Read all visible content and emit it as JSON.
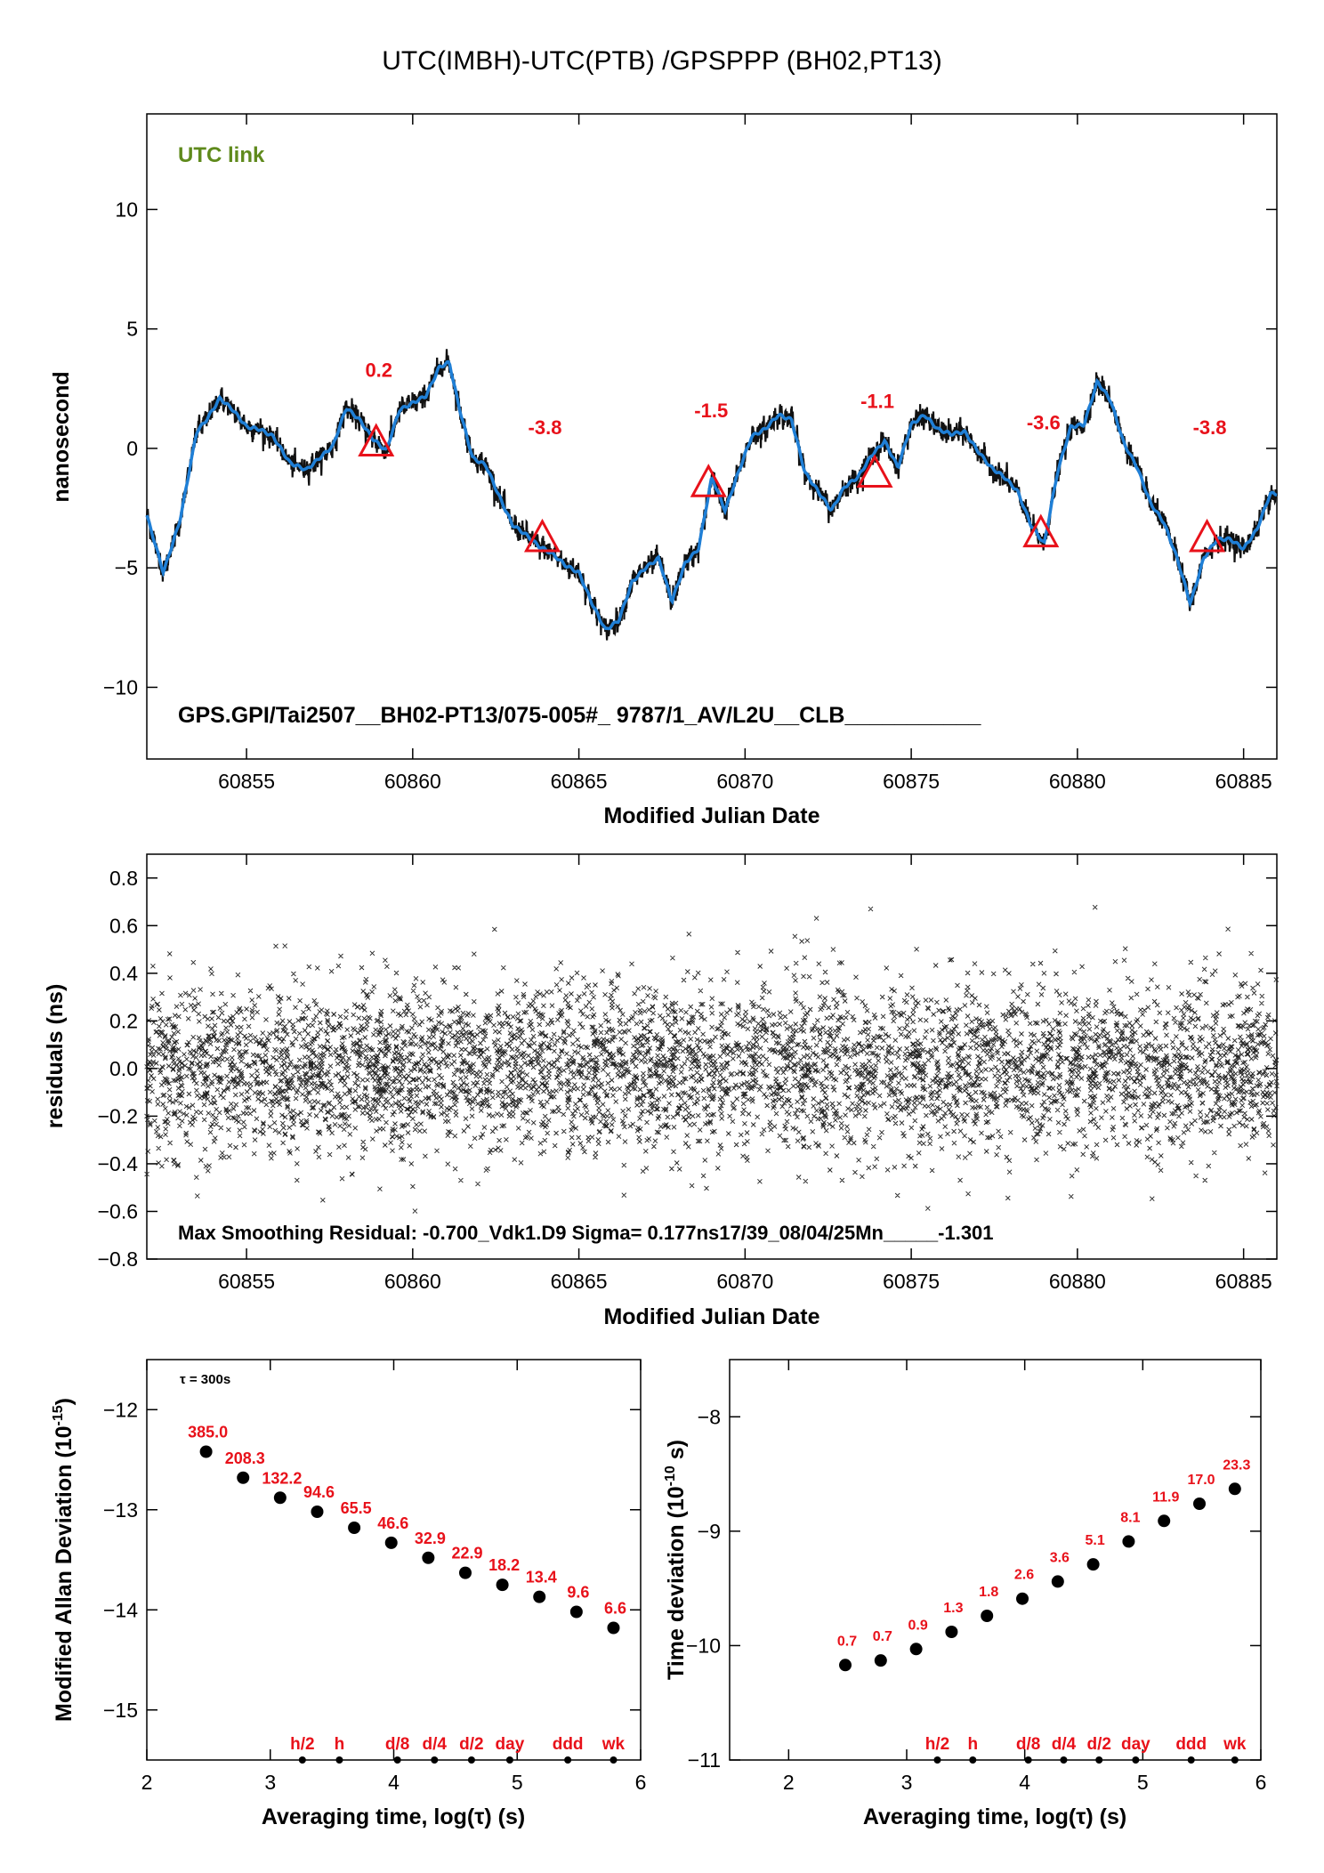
{
  "figure": {
    "title": "UTC(IMBH)-UTC(PTB)  /GPSPPP  (BH02,PT13)"
  },
  "chart_data": [
    {
      "type": "line",
      "panel": "top",
      "xlabel": "Modified Julian Date",
      "ylabel": "nanosecond",
      "xlim": [
        60852,
        60886
      ],
      "ylim": [
        -13,
        14
      ],
      "xticks": [
        60855,
        60860,
        60865,
        60870,
        60875,
        60880,
        60885
      ],
      "yticks": [
        -10,
        -5,
        0,
        5,
        10
      ],
      "link_label": "UTC link",
      "footer_label": "GPS.GPI/Tai2507__BH02-PT13/075-005#_  9787/1_AV/L2U__CLB___________",
      "series": [
        {
          "style": "smoothed-blue-with-black-raw",
          "x": [
            60852.0,
            60852.5,
            60853.0,
            60853.5,
            60853.8,
            60854.2,
            60854.6,
            60855.0,
            60855.4,
            60855.8,
            60856.3,
            60856.8,
            60857.2,
            60857.6,
            60858.0,
            60858.4,
            60858.8,
            60859.2,
            60859.6,
            60860.0,
            60860.4,
            60860.8,
            60861.1,
            60861.4,
            60861.8,
            60862.2,
            60862.6,
            60863.0,
            60863.4,
            60863.8,
            60864.2,
            60864.6,
            60865.0,
            60865.4,
            60865.8,
            60866.2,
            60866.6,
            60867.0,
            60867.4,
            60867.8,
            60868.2,
            60868.6,
            60869.0,
            60869.4,
            60869.8,
            60870.2,
            60870.6,
            60871.0,
            60871.4,
            60871.8,
            60872.2,
            60872.6,
            60873.0,
            60873.4,
            60873.8,
            60874.2,
            60874.6,
            60875.0,
            60875.4,
            60875.8,
            60876.2,
            60876.6,
            60877.0,
            60877.4,
            60877.8,
            60878.2,
            60878.6,
            60879.0,
            60879.4,
            60879.8,
            60880.2,
            60880.6,
            60881.0,
            60881.4,
            60881.8,
            60882.2,
            60882.6,
            60883.0,
            60883.4,
            60883.8,
            60884.2,
            60884.6,
            60885.0,
            60885.4,
            60885.8
          ],
          "y": [
            -2.8,
            -5.2,
            -3.0,
            0.7,
            1.2,
            2.1,
            1.6,
            0.9,
            0.8,
            0.5,
            -0.6,
            -0.9,
            -0.4,
            0.1,
            1.7,
            1.2,
            0.4,
            -0.1,
            1.6,
            1.9,
            2.2,
            3.4,
            3.6,
            1.7,
            -0.4,
            -0.7,
            -2.0,
            -3.2,
            -3.6,
            -4.1,
            -4.4,
            -4.9,
            -5.2,
            -6.5,
            -7.6,
            -7.2,
            -5.6,
            -5.0,
            -4.6,
            -6.4,
            -4.8,
            -4.2,
            -1.2,
            -2.6,
            -1.0,
            0.5,
            0.8,
            1.4,
            1.2,
            -1.0,
            -1.8,
            -2.6,
            -1.6,
            -1.2,
            -0.3,
            0.3,
            -0.8,
            1.0,
            1.4,
            0.8,
            0.6,
            0.7,
            -0.1,
            -0.8,
            -1.2,
            -1.8,
            -3.2,
            -4.0,
            -1.0,
            0.9,
            1.0,
            2.8,
            2.0,
            0.2,
            -0.8,
            -2.3,
            -3.1,
            -4.6,
            -6.5,
            -4.6,
            -3.8,
            -3.8,
            -4.2,
            -3.4,
            -1.9
          ]
        }
      ],
      "markers": [
        {
          "x": 60858.9,
          "y": 0.2,
          "label": "0.2"
        },
        {
          "x": 60863.9,
          "y": -3.8,
          "label": "-3.8"
        },
        {
          "x": 60868.9,
          "y": -1.5,
          "label": "-1.5"
        },
        {
          "x": 60873.9,
          "y": -1.1,
          "label": "-1.1"
        },
        {
          "x": 60878.9,
          "y": -3.6,
          "label": "-3.6"
        },
        {
          "x": 60883.9,
          "y": -3.8,
          "label": "-3.8"
        }
      ]
    },
    {
      "type": "scatter",
      "panel": "middle",
      "xlabel": "Modified Julian Date",
      "ylabel": "residuals (ns)",
      "xlim": [
        60852,
        60886
      ],
      "ylim": [
        -0.8,
        0.9
      ],
      "xticks": [
        60855,
        60860,
        60865,
        60870,
        60875,
        60880,
        60885
      ],
      "yticks": [
        -0.8,
        -0.6,
        -0.4,
        -0.2,
        0.0,
        0.2,
        0.4,
        0.6,
        0.8
      ],
      "footer_label": "Max Smoothing Residual: -0.700_Vdk1.D9  Sigma= 0.177ns17/39_08/04/25Mn_____-1.301",
      "sigma": 0.177,
      "min": -0.7,
      "max": 0.71
    },
    {
      "type": "scatter",
      "panel": "bottom-left",
      "xlabel": "Averaging time, log(τ) (s)",
      "ylabel": "Modified Allan Deviation (10-15)",
      "ylabel_main": "Modified Allan Deviation (10",
      "ylabel_sup": "-15",
      "ylabel_end": ")",
      "xlim": [
        2,
        6
      ],
      "ylim": [
        -15.5,
        -11.5
      ],
      "xticks": [
        2,
        3,
        4,
        5,
        6
      ],
      "yticks": [
        -15,
        -14,
        -13,
        -12
      ],
      "tau_note": "τ = 300s",
      "x": [
        2.48,
        2.78,
        3.08,
        3.38,
        3.68,
        3.98,
        4.28,
        4.58,
        4.88,
        5.18,
        5.48,
        5.78
      ],
      "y": [
        -12.42,
        -12.68,
        -12.88,
        -13.02,
        -13.18,
        -13.33,
        -13.48,
        -13.63,
        -13.75,
        -13.87,
        -14.02,
        -14.18
      ],
      "labels": [
        "385.0",
        "208.3",
        "132.2",
        "94.6",
        "65.5",
        "46.6",
        "32.9",
        "22.9",
        "18.2",
        "13.4",
        "9.6",
        "6.6"
      ],
      "period_marks": [
        {
          "x": 3.26,
          "label": "h/2"
        },
        {
          "x": 3.56,
          "label": "h"
        },
        {
          "x": 4.03,
          "label": "d/8"
        },
        {
          "x": 4.33,
          "label": "d/4"
        },
        {
          "x": 4.63,
          "label": "d/2"
        },
        {
          "x": 4.94,
          "label": "day"
        },
        {
          "x": 5.41,
          "label": "ddd"
        },
        {
          "x": 5.78,
          "label": "wk"
        }
      ]
    },
    {
      "type": "scatter",
      "panel": "bottom-right",
      "xlabel": "Averaging time, log(τ) (s)",
      "ylabel": "Time deviation (10-10 s)",
      "ylabel_main": "Time deviation (10",
      "ylabel_sup": "-10",
      "ylabel_end": " s)",
      "xlim": [
        1.5,
        6
      ],
      "ylim": [
        -11,
        -7.5
      ],
      "xticks": [
        2,
        3,
        4,
        5,
        6
      ],
      "yticks": [
        -11,
        -10,
        -9,
        -8
      ],
      "x": [
        2.48,
        2.78,
        3.08,
        3.38,
        3.68,
        3.98,
        4.28,
        4.58,
        4.88,
        5.18,
        5.48,
        5.78
      ],
      "y": [
        -10.17,
        -10.13,
        -10.03,
        -9.88,
        -9.74,
        -9.59,
        -9.44,
        -9.29,
        -9.09,
        -8.91,
        -8.76,
        -8.63
      ],
      "labels": [
        "0.7",
        "0.7",
        "0.9",
        "1.3",
        "1.8",
        "2.6",
        "3.6",
        "5.1",
        "8.1",
        "11.9",
        "17.0",
        "23.3"
      ],
      "period_marks": [
        {
          "x": 3.26,
          "label": "h/2"
        },
        {
          "x": 3.56,
          "label": "h"
        },
        {
          "x": 4.03,
          "label": "d/8"
        },
        {
          "x": 4.33,
          "label": "d/4"
        },
        {
          "x": 4.63,
          "label": "d/2"
        },
        {
          "x": 4.94,
          "label": "day"
        },
        {
          "x": 5.41,
          "label": "ddd"
        },
        {
          "x": 5.78,
          "label": "wk"
        }
      ]
    }
  ]
}
